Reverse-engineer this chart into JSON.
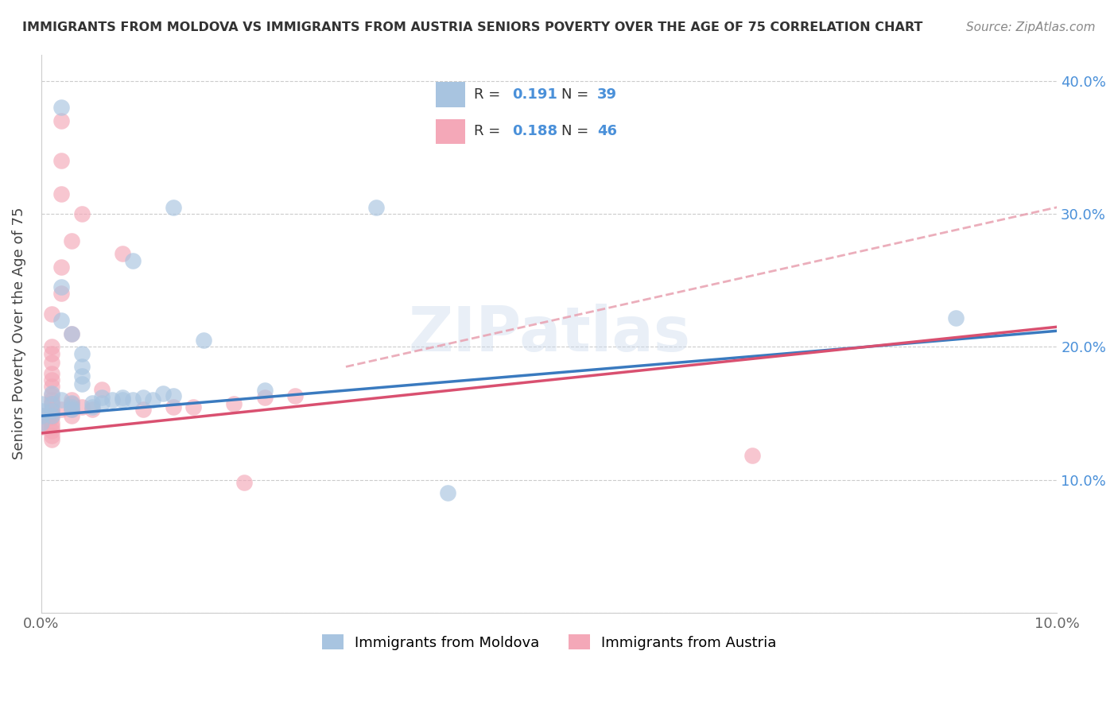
{
  "title": "IMMIGRANTS FROM MOLDOVA VS IMMIGRANTS FROM AUSTRIA SENIORS POVERTY OVER THE AGE OF 75 CORRELATION CHART",
  "source": "Source: ZipAtlas.com",
  "ylabel": "Seniors Poverty Over the Age of 75",
  "xlim": [
    0.0,
    0.1
  ],
  "ylim": [
    0.0,
    0.42
  ],
  "moldova_color": "#a8c4e0",
  "moldova_edge_color": "#7aadd4",
  "austria_color": "#f4a8b8",
  "austria_edge_color": "#e07090",
  "moldova_line_color": "#3a7abf",
  "austria_line_color": "#d95070",
  "austria_dashed_color": "#e8a0b0",
  "legend_R_moldova": "0.191",
  "legend_N_moldova": "39",
  "legend_R_austria": "0.188",
  "legend_N_austria": "46",
  "legend_val_color": "#4a90d9",
  "watermark": "ZIPatlas",
  "moldova_line_x0": 0.0,
  "moldova_line_y0": 0.148,
  "moldova_line_x1": 0.1,
  "moldova_line_y1": 0.212,
  "austria_line_x0": 0.0,
  "austria_line_y0": 0.135,
  "austria_line_x1": 0.1,
  "austria_line_y1": 0.215,
  "dashed_line_x0": 0.03,
  "dashed_line_y0": 0.185,
  "dashed_line_x1": 0.1,
  "dashed_line_y1": 0.305,
  "moldova_scatter": [
    [
      0.002,
      0.38
    ],
    [
      0.013,
      0.305
    ],
    [
      0.033,
      0.305
    ],
    [
      0.009,
      0.265
    ],
    [
      0.002,
      0.245
    ],
    [
      0.002,
      0.22
    ],
    [
      0.003,
      0.21
    ],
    [
      0.016,
      0.205
    ],
    [
      0.004,
      0.195
    ],
    [
      0.004,
      0.185
    ],
    [
      0.004,
      0.178
    ],
    [
      0.004,
      0.172
    ],
    [
      0.022,
      0.167
    ],
    [
      0.09,
      0.222
    ],
    [
      0.001,
      0.165
    ],
    [
      0.002,
      0.16
    ],
    [
      0.003,
      0.158
    ],
    [
      0.003,
      0.155
    ],
    [
      0.003,
      0.153
    ],
    [
      0.005,
      0.155
    ],
    [
      0.005,
      0.158
    ],
    [
      0.006,
      0.158
    ],
    [
      0.006,
      0.162
    ],
    [
      0.007,
      0.16
    ],
    [
      0.008,
      0.16
    ],
    [
      0.008,
      0.162
    ],
    [
      0.009,
      0.16
    ],
    [
      0.01,
      0.162
    ],
    [
      0.011,
      0.16
    ],
    [
      0.012,
      0.165
    ],
    [
      0.013,
      0.163
    ],
    [
      0.0,
      0.157
    ],
    [
      0.001,
      0.157
    ],
    [
      0.0,
      0.152
    ],
    [
      0.001,
      0.152
    ],
    [
      0.0,
      0.148
    ],
    [
      0.001,
      0.148
    ],
    [
      0.0,
      0.143
    ],
    [
      0.04,
      0.09
    ]
  ],
  "austria_scatter": [
    [
      0.002,
      0.37
    ],
    [
      0.002,
      0.34
    ],
    [
      0.002,
      0.315
    ],
    [
      0.004,
      0.3
    ],
    [
      0.003,
      0.28
    ],
    [
      0.008,
      0.27
    ],
    [
      0.002,
      0.26
    ],
    [
      0.002,
      0.24
    ],
    [
      0.001,
      0.225
    ],
    [
      0.003,
      0.21
    ],
    [
      0.001,
      0.2
    ],
    [
      0.001,
      0.195
    ],
    [
      0.001,
      0.188
    ],
    [
      0.001,
      0.18
    ],
    [
      0.001,
      0.175
    ],
    [
      0.001,
      0.17
    ],
    [
      0.006,
      0.168
    ],
    [
      0.001,
      0.164
    ],
    [
      0.001,
      0.16
    ],
    [
      0.001,
      0.157
    ],
    [
      0.001,
      0.153
    ],
    [
      0.001,
      0.15
    ],
    [
      0.001,
      0.147
    ],
    [
      0.001,
      0.143
    ],
    [
      0.001,
      0.14
    ],
    [
      0.001,
      0.137
    ],
    [
      0.001,
      0.133
    ],
    [
      0.001,
      0.13
    ],
    [
      0.0,
      0.148
    ],
    [
      0.0,
      0.143
    ],
    [
      0.0,
      0.14
    ],
    [
      0.002,
      0.153
    ],
    [
      0.003,
      0.16
    ],
    [
      0.003,
      0.157
    ],
    [
      0.003,
      0.153
    ],
    [
      0.003,
      0.148
    ],
    [
      0.004,
      0.155
    ],
    [
      0.005,
      0.153
    ],
    [
      0.01,
      0.153
    ],
    [
      0.013,
      0.155
    ],
    [
      0.015,
      0.155
    ],
    [
      0.019,
      0.157
    ],
    [
      0.022,
      0.162
    ],
    [
      0.025,
      0.163
    ],
    [
      0.07,
      0.118
    ],
    [
      0.02,
      0.098
    ]
  ]
}
